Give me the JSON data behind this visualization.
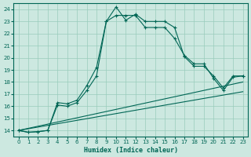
{
  "xlabel": "Humidex (Indice chaleur)",
  "background_color": "#cce8e0",
  "grid_color": "#99ccbb",
  "line_color": "#006655",
  "xlim": [
    -0.5,
    23.5
  ],
  "ylim": [
    13.5,
    24.5
  ],
  "xticks": [
    0,
    1,
    2,
    3,
    4,
    5,
    6,
    7,
    8,
    9,
    10,
    11,
    12,
    13,
    14,
    15,
    16,
    17,
    18,
    19,
    20,
    21,
    22,
    23
  ],
  "yticks": [
    14,
    15,
    16,
    17,
    18,
    19,
    20,
    21,
    22,
    23,
    24
  ],
  "line1_x": [
    0,
    1,
    2,
    3,
    4,
    5,
    6,
    7,
    8,
    9,
    10,
    11,
    12,
    13,
    14,
    15,
    16,
    17,
    18,
    19,
    20,
    21,
    22,
    23
  ],
  "line1_y": [
    14.0,
    13.85,
    13.9,
    14.0,
    16.1,
    16.0,
    16.3,
    17.3,
    18.5,
    23.0,
    24.2,
    23.1,
    23.6,
    23.0,
    23.0,
    23.0,
    22.5,
    20.1,
    19.3,
    19.3,
    18.5,
    17.5,
    18.5,
    18.5
  ],
  "line2_x": [
    0,
    1,
    2,
    3,
    4,
    5,
    6,
    7,
    8,
    9,
    10,
    11,
    12,
    13,
    14,
    15,
    16,
    17,
    18,
    19,
    20,
    21,
    22,
    23
  ],
  "line2_y": [
    14.0,
    13.85,
    13.9,
    14.0,
    16.3,
    16.2,
    16.5,
    17.7,
    19.2,
    23.0,
    23.5,
    23.5,
    23.5,
    22.5,
    22.5,
    22.5,
    21.6,
    20.2,
    19.5,
    19.5,
    18.3,
    17.3,
    18.4,
    18.5
  ],
  "line3_x": [
    0,
    23
  ],
  "line3_y": [
    14.0,
    18.0
  ],
  "line4_x": [
    0,
    23
  ],
  "line4_y": [
    14.0,
    17.2
  ]
}
